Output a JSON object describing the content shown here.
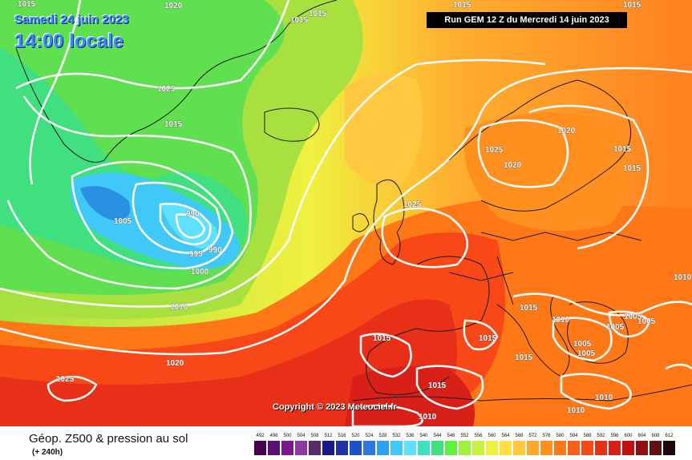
{
  "header": {
    "date": "Samedi 24 juin 2023",
    "time": "14:00 locale",
    "run": "Run GEM 12 Z du Mercredi 14 juin 2023"
  },
  "copyright": "Copyright © 2023 Meteociel.fr",
  "legend": {
    "title": "Géop. Z500 & pression au sol",
    "subtitle": "(+ 240h)",
    "scale_values": [
      "492",
      "496",
      "500",
      "504",
      "508",
      "512",
      "516",
      "520",
      "524",
      "528",
      "532",
      "536",
      "540",
      "544",
      "548",
      "552",
      "556",
      "560",
      "564",
      "568",
      "572",
      "576",
      "580",
      "584",
      "588",
      "592",
      "596",
      "600",
      "604",
      "608",
      "612"
    ],
    "scale_colors": [
      "#4a0050",
      "#5a1070",
      "#7a1a8a",
      "#8a3aa0",
      "#5a2a6a",
      "#1a1a8a",
      "#2030a8",
      "#2050c8",
      "#2a78e0",
      "#30a0f0",
      "#40c8f8",
      "#60e0ff",
      "#40e0c0",
      "#40e080",
      "#60f040",
      "#a0f040",
      "#c8f040",
      "#f0f040",
      "#ffe040",
      "#ffc840",
      "#ffa830",
      "#ff9020",
      "#ff7818",
      "#ff6018",
      "#f84818",
      "#e83018",
      "#d82018",
      "#c01010",
      "#901010",
      "#601010",
      "#200808"
    ]
  },
  "isobars": [
    "1015",
    "1020",
    "1015",
    "1015",
    "1025",
    "1015",
    "1005",
    "990",
    "995",
    "990",
    "1000",
    "1010",
    "1020",
    "1025",
    "1025",
    "1015",
    "1025",
    "1020",
    "1020",
    "1015",
    "1015",
    "1015",
    "1015",
    "1015",
    "1015",
    "1010",
    "1005",
    "1005",
    "1005",
    "1005",
    "1005",
    "1015",
    "1010",
    "1010",
    "1015",
    "1010",
    "1010"
  ],
  "colors": {
    "run_box_bg": "#000000",
    "title_blue": "#3a8cff"
  }
}
